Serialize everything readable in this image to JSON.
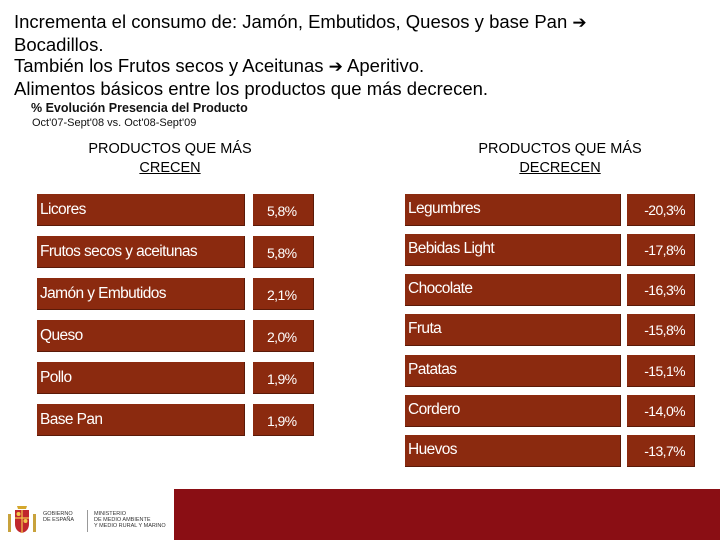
{
  "headline": {
    "line1": "Incrementa el consumo de: Jamón, Embutidos, Quesos y base Pan ",
    "line2": "Bocadillos.",
    "line3a": "También los Frutos secos y Aceitunas ",
    "line3b": " Aperitivo.",
    "line4": "Alimentos básicos entre los productos que más decrecen.",
    "arrow": "➔"
  },
  "subtitle": "% Evolución Presencia del Producto",
  "period": "Oct'07-Sept'08 vs. Oct'08-Sept'09",
  "left_column": {
    "title_line1": "PRODUCTOS QUE MÁS",
    "title_line2": "CRECEN",
    "items": [
      {
        "name": "Licores",
        "value": "5,8%"
      },
      {
        "name": "Frutos secos y aceitunas",
        "value": "5,8%"
      },
      {
        "name": "Jamón y Embutidos",
        "value": "2,1%"
      },
      {
        "name": "Queso",
        "value": "2,0%"
      },
      {
        "name": "Pollo",
        "value": "1,9%"
      },
      {
        "name": "Base Pan",
        "value": "1,9%"
      }
    ]
  },
  "right_column": {
    "title_line1": "PRODUCTOS QUE MÁS",
    "title_line2": "DECRECEN",
    "items": [
      {
        "name": "Legumbres",
        "value": "-20,3%"
      },
      {
        "name": "Bebidas Light",
        "value": "-17,8%"
      },
      {
        "name": "Chocolate",
        "value": "-16,3%"
      },
      {
        "name": "Fruta",
        "value": "-15,8%"
      },
      {
        "name": "Patatas",
        "value": "-15,1%"
      },
      {
        "name": "Cordero",
        "value": "-14,0%"
      },
      {
        "name": "Huevos",
        "value": "-13,7%"
      }
    ]
  },
  "footer": {
    "gov_line1": "GOBIERNO",
    "gov_line2": "DE ESPAÑA",
    "ministry_line1": "MINISTERIO",
    "ministry_line2": "DE MEDIO AMBIENTE",
    "ministry_line3": "Y MEDIO RURAL Y MARINO",
    "colors": {
      "cell": "#8b2a0f",
      "band": "#8a0e14"
    }
  }
}
